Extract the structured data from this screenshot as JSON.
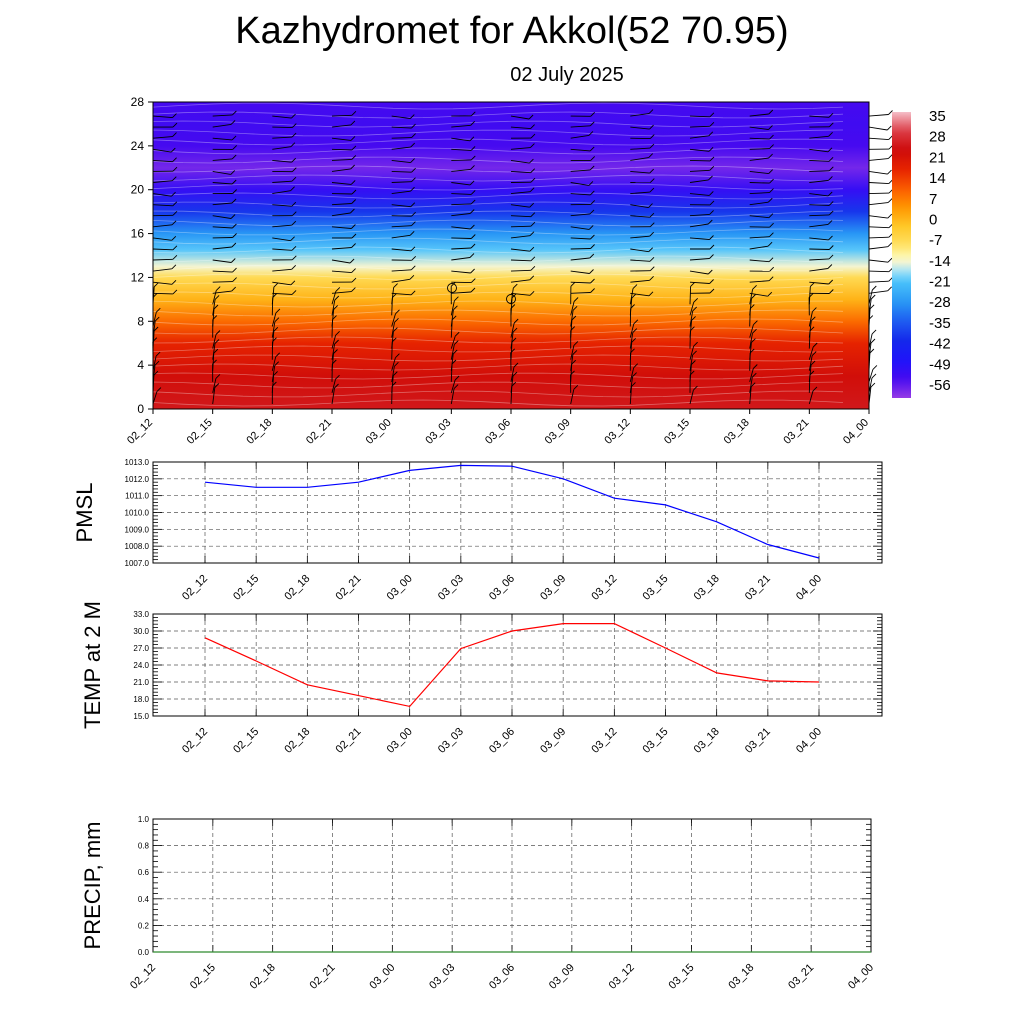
{
  "title": "Kazhydromet for Akkol(52 70.95)",
  "subtitle": "02 July 2025",
  "chart_data": [
    {
      "type": "heatmap",
      "x_ticks": [
        "02_12",
        "02_15",
        "02_18",
        "02_21",
        "03_00",
        "03_03",
        "03_06",
        "03_09",
        "03_12",
        "03_15",
        "03_18",
        "03_21",
        "04_00"
      ],
      "y_ticks": [
        "0",
        "4",
        "8",
        "12",
        "16",
        "20",
        "24",
        "28"
      ],
      "ylim": [
        0,
        28
      ],
      "colorbar_ticks": [
        "35",
        "28",
        "21",
        "14",
        "7",
        "0",
        "-7",
        "-14",
        "-21",
        "-28",
        "-35",
        "-42",
        "-49",
        "-56"
      ],
      "colorbar_range": [
        -63,
        42
      ],
      "stops": [
        {
          "y": 0,
          "t": 30
        },
        {
          "y": 3,
          "t": 27
        },
        {
          "y": 6,
          "t": 21
        },
        {
          "y": 8,
          "t": 12
        },
        {
          "y": 10,
          "t": 3
        },
        {
          "y": 12,
          "t": -5
        },
        {
          "y": 13,
          "t": -13
        },
        {
          "y": 14.5,
          "t": -20
        },
        {
          "y": 16,
          "t": -28
        },
        {
          "y": 18,
          "t": -40
        },
        {
          "y": 20,
          "t": -53
        },
        {
          "y": 22,
          "t": -60
        },
        {
          "y": 24,
          "t": -56
        },
        {
          "y": 26,
          "t": -55
        },
        {
          "y": 28,
          "t": -56
        }
      ]
    },
    {
      "type": "line",
      "ylabel": "PMSL",
      "x": [
        "02_12",
        "02_15",
        "02_18",
        "02_21",
        "03_00",
        "03_03",
        "03_06",
        "03_09",
        "03_12",
        "03_15",
        "03_18",
        "03_21",
        "04_00"
      ],
      "y_ticks": [
        "1007.0",
        "1008.0",
        "1009.0",
        "1010.0",
        "1011.0",
        "1012.0",
        "1013.0"
      ],
      "ylim": [
        1007,
        1013
      ],
      "color": "#0000ff",
      "values": [
        1011.8,
        1011.5,
        1011.5,
        1011.8,
        1012.5,
        1012.8,
        1012.75,
        1012.0,
        1010.85,
        1010.45,
        1009.45,
        1008.1,
        1007.3
      ]
    },
    {
      "type": "line",
      "ylabel": "TEMP at 2 M",
      "x": [
        "02_12",
        "02_15",
        "02_18",
        "02_21",
        "03_00",
        "03_03",
        "03_06",
        "03_09",
        "03_12",
        "03_15",
        "03_18",
        "03_21",
        "04_00"
      ],
      "y_ticks": [
        "15.0",
        "18.0",
        "21.0",
        "24.0",
        "27.0",
        "30.0",
        "33.0"
      ],
      "ylim": [
        15,
        33
      ],
      "color": "#ff0000",
      "values": [
        28.8,
        24.7,
        20.5,
        18.6,
        16.7,
        26.9,
        30.0,
        31.3,
        31.3,
        27.0,
        22.6,
        21.2,
        21.0
      ]
    },
    {
      "type": "line",
      "ylabel": "PRECIP, mm",
      "x": [
        "02_12",
        "02_15",
        "02_18",
        "02_21",
        "03_00",
        "03_03",
        "03_06",
        "03_09",
        "03_12",
        "03_15",
        "03_18",
        "03_21",
        "04_00"
      ],
      "y_ticks": [
        "0.0",
        "0.2",
        "0.4",
        "0.6",
        "0.8",
        "1.0"
      ],
      "ylim": [
        0,
        1
      ],
      "color": "#2e8b2e",
      "values": [
        0,
        0,
        0,
        0,
        0,
        0,
        0,
        0,
        0,
        0,
        0,
        0,
        0
      ]
    }
  ]
}
